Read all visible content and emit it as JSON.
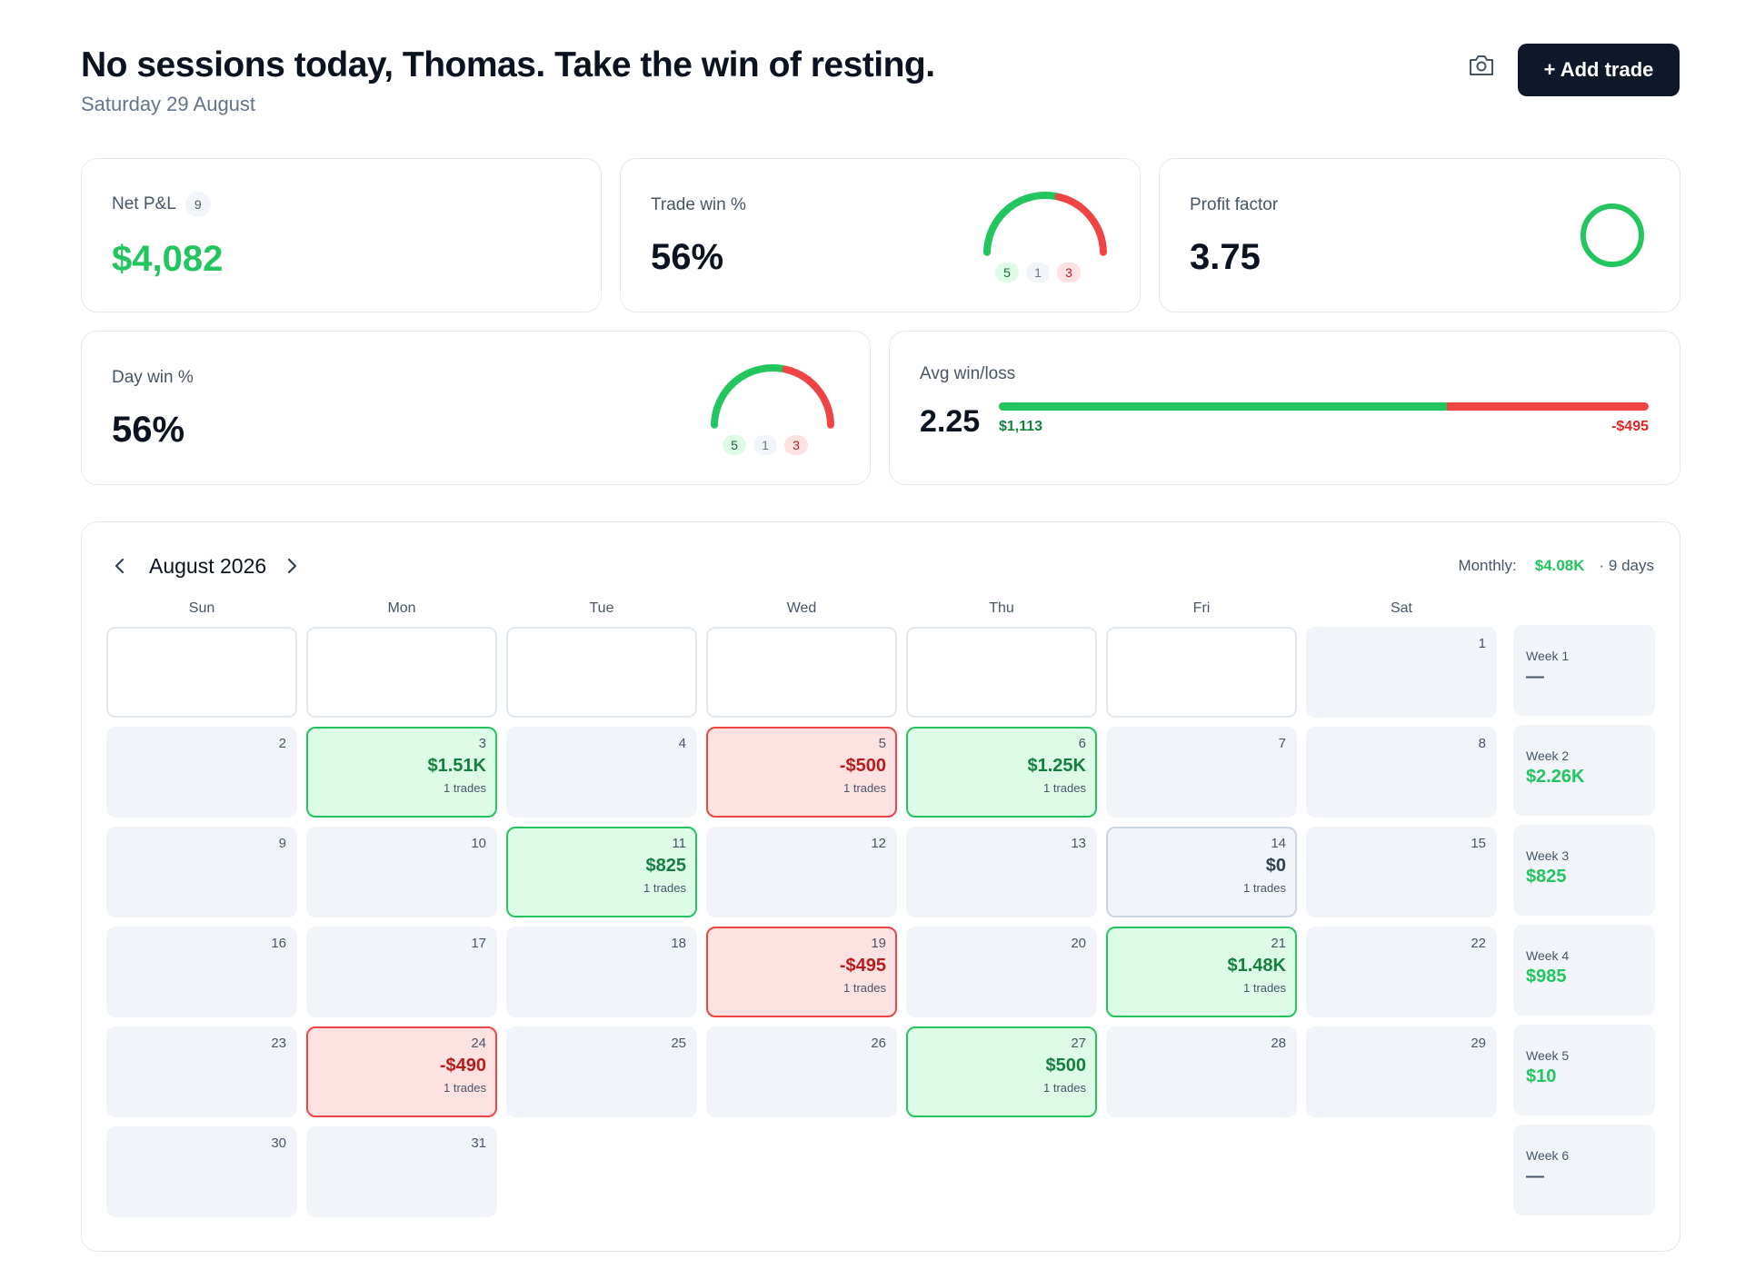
{
  "header": {
    "greeting": "No sessions today, Thomas. Take the win of resting.",
    "date": "Saturday 29 August",
    "add_trade_label": "+ Add trade",
    "camera_icon": "camera-icon"
  },
  "stats": {
    "net_pnl": {
      "label": "Net P&L",
      "count": "9",
      "value": "$4,082",
      "color": "#22c55e"
    },
    "trade_win": {
      "label": "Trade win %",
      "value": "56%",
      "wins": "5",
      "breakeven": "1",
      "losses": "3",
      "win_fraction": 0.56
    },
    "profit_factor": {
      "label": "Profit factor",
      "value": "3.75",
      "ring_color": "#22c55e"
    },
    "day_win": {
      "label": "Day win %",
      "value": "56%",
      "wins": "5",
      "breakeven": "1",
      "losses": "3",
      "win_fraction": 0.56
    },
    "avg_win_loss": {
      "label": "Avg win/loss",
      "value": "2.25",
      "avg_win": "$1,113",
      "avg_loss": "-$495",
      "win_share": 0.69
    }
  },
  "calendar": {
    "month_label": "August 2026",
    "monthly_label": "Monthly:",
    "monthly_value": "$4.08K",
    "days_label": "· 9 days",
    "weekdays": [
      "Sun",
      "Mon",
      "Tue",
      "Wed",
      "Thu",
      "Fri",
      "Sat"
    ],
    "days": [
      {
        "day": "1",
        "row": 0,
        "col": 6
      },
      {
        "day": "2",
        "row": 1,
        "col": 0
      },
      {
        "day": "3",
        "row": 1,
        "col": 1,
        "pnl": "$1.51K",
        "trades": "1 trades",
        "status": "win"
      },
      {
        "day": "4",
        "row": 1,
        "col": 2
      },
      {
        "day": "5",
        "row": 1,
        "col": 3,
        "pnl": "-$500",
        "trades": "1 trades",
        "status": "loss"
      },
      {
        "day": "6",
        "row": 1,
        "col": 4,
        "pnl": "$1.25K",
        "trades": "1 trades",
        "status": "win"
      },
      {
        "day": "7",
        "row": 1,
        "col": 5
      },
      {
        "day": "8",
        "row": 1,
        "col": 6
      },
      {
        "day": "9",
        "row": 2,
        "col": 0
      },
      {
        "day": "10",
        "row": 2,
        "col": 1
      },
      {
        "day": "11",
        "row": 2,
        "col": 2,
        "pnl": "$825",
        "trades": "1 trades",
        "status": "win"
      },
      {
        "day": "12",
        "row": 2,
        "col": 3
      },
      {
        "day": "13",
        "row": 2,
        "col": 4
      },
      {
        "day": "14",
        "row": 2,
        "col": 5,
        "pnl": "$0",
        "trades": "1 trades",
        "status": "flat"
      },
      {
        "day": "15",
        "row": 2,
        "col": 6
      },
      {
        "day": "16",
        "row": 3,
        "col": 0
      },
      {
        "day": "17",
        "row": 3,
        "col": 1
      },
      {
        "day": "18",
        "row": 3,
        "col": 2
      },
      {
        "day": "19",
        "row": 3,
        "col": 3,
        "pnl": "-$495",
        "trades": "1 trades",
        "status": "loss"
      },
      {
        "day": "20",
        "row": 3,
        "col": 4
      },
      {
        "day": "21",
        "row": 3,
        "col": 5,
        "pnl": "$1.48K",
        "trades": "1 trades",
        "status": "win"
      },
      {
        "day": "22",
        "row": 3,
        "col": 6
      },
      {
        "day": "23",
        "row": 4,
        "col": 0
      },
      {
        "day": "24",
        "row": 4,
        "col": 1,
        "pnl": "-$490",
        "trades": "1 trades",
        "status": "loss"
      },
      {
        "day": "25",
        "row": 4,
        "col": 2
      },
      {
        "day": "26",
        "row": 4,
        "col": 3
      },
      {
        "day": "27",
        "row": 4,
        "col": 4,
        "pnl": "$500",
        "trades": "1 trades",
        "status": "win"
      },
      {
        "day": "28",
        "row": 4,
        "col": 5
      },
      {
        "day": "29",
        "row": 4,
        "col": 6
      },
      {
        "day": "30",
        "row": 5,
        "col": 0
      },
      {
        "day": "31",
        "row": 5,
        "col": 1
      }
    ],
    "empty_cells": [
      {
        "row": 0,
        "col": 0
      },
      {
        "row": 0,
        "col": 1
      },
      {
        "row": 0,
        "col": 2
      },
      {
        "row": 0,
        "col": 3
      },
      {
        "row": 0,
        "col": 4
      },
      {
        "row": 0,
        "col": 5
      }
    ],
    "weeks": [
      {
        "label": "Week 1",
        "value": "—"
      },
      {
        "label": "Week 2",
        "value": "$2.26K"
      },
      {
        "label": "Week 3",
        "value": "$825"
      },
      {
        "label": "Week 4",
        "value": "$985"
      },
      {
        "label": "Week 5",
        "value": "$10"
      },
      {
        "label": "Week 6",
        "value": "—"
      }
    ]
  },
  "colors": {
    "win": "#22c55e",
    "loss": "#ef4444",
    "dark": "#0f172a"
  }
}
